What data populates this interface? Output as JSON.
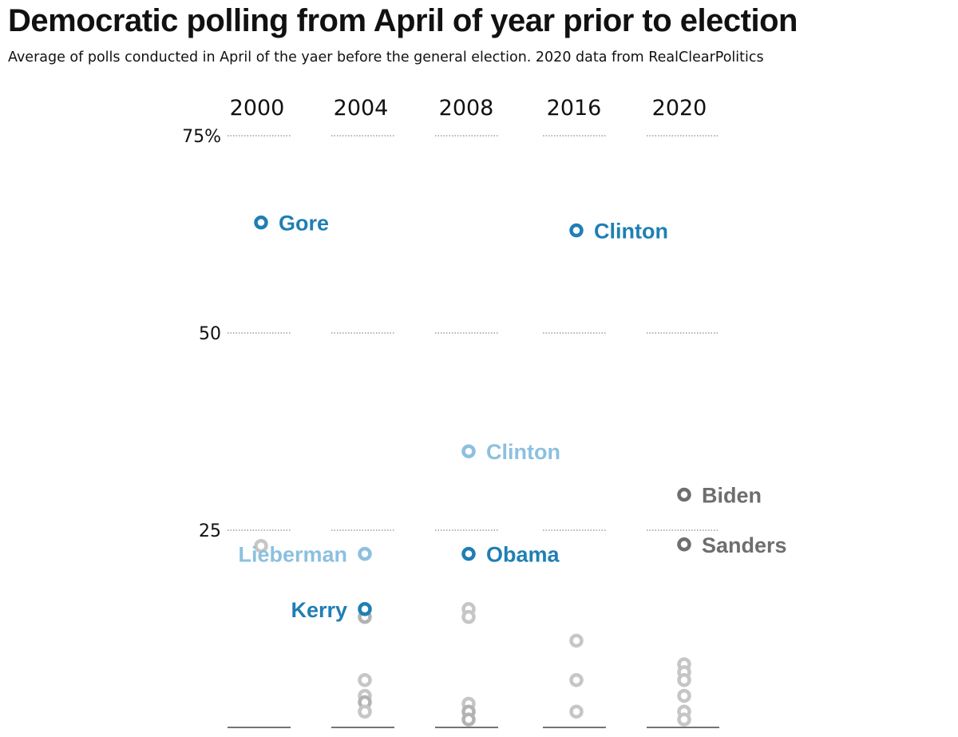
{
  "title": "Democratic polling from April of year prior to election",
  "subtitle": "Average of polls conducted in April of the yaer before the general election. 2020 data from RealClearPolitics",
  "chart_data": {
    "type": "scatter",
    "y_unit": "%",
    "ylim": [
      0,
      75
    ],
    "y_ticks": [
      {
        "value": 75,
        "label": "75%"
      },
      {
        "value": 50,
        "label": "50"
      },
      {
        "value": 25,
        "label": "25"
      }
    ],
    "grid": "dotted horizontal at 25, 50, 75; solid baseline at 0",
    "legend": "none; leading candidates labeled directly",
    "colors": {
      "winner": "#1f7fb4",
      "runner_up": "#8cc0df",
      "current": "#6e6e6e",
      "other": "#c6c6c6"
    },
    "columns": [
      {
        "year": "2000",
        "points": [
          {
            "value": 64,
            "label": "Gore",
            "style": "winner"
          },
          {
            "value": 23,
            "label": "",
            "style": "other"
          }
        ]
      },
      {
        "year": "2004",
        "points": [
          {
            "value": 22,
            "label": "Lieberman",
            "style": "runner_up"
          },
          {
            "value": 15,
            "label": "Kerry",
            "style": "winner"
          },
          {
            "value": 14,
            "label": "",
            "style": "other_dark"
          },
          {
            "value": 6,
            "label": "",
            "style": "other"
          },
          {
            "value": 4,
            "label": "",
            "style": "other"
          },
          {
            "value": 3.2,
            "label": "",
            "style": "other_dark"
          },
          {
            "value": 2,
            "label": "",
            "style": "other"
          }
        ]
      },
      {
        "year": "2008",
        "points": [
          {
            "value": 35,
            "label": "Clinton",
            "style": "runner_up"
          },
          {
            "value": 22,
            "label": "Obama",
            "style": "winner"
          },
          {
            "value": 15,
            "label": "",
            "style": "other"
          },
          {
            "value": 14,
            "label": "",
            "style": "other"
          },
          {
            "value": 3,
            "label": "",
            "style": "other"
          },
          {
            "value": 2,
            "label": "",
            "style": "other_dark"
          },
          {
            "value": 1,
            "label": "",
            "style": "other_dark"
          }
        ]
      },
      {
        "year": "2016",
        "points": [
          {
            "value": 63,
            "label": "Clinton",
            "style": "winner"
          },
          {
            "value": 11,
            "label": "",
            "style": "other"
          },
          {
            "value": 6,
            "label": "",
            "style": "other"
          },
          {
            "value": 2,
            "label": "",
            "style": "other"
          }
        ]
      },
      {
        "year": "2020",
        "points": [
          {
            "value": 29.5,
            "label": "Biden",
            "style": "current"
          },
          {
            "value": 23.2,
            "label": "Sanders",
            "style": "current"
          },
          {
            "value": 8,
            "label": "",
            "style": "other"
          },
          {
            "value": 7,
            "label": "",
            "style": "other"
          },
          {
            "value": 6,
            "label": "",
            "style": "other"
          },
          {
            "value": 4,
            "label": "",
            "style": "other"
          },
          {
            "value": 2,
            "label": "",
            "style": "other"
          },
          {
            "value": 1,
            "label": "",
            "style": "other"
          }
        ]
      }
    ]
  }
}
